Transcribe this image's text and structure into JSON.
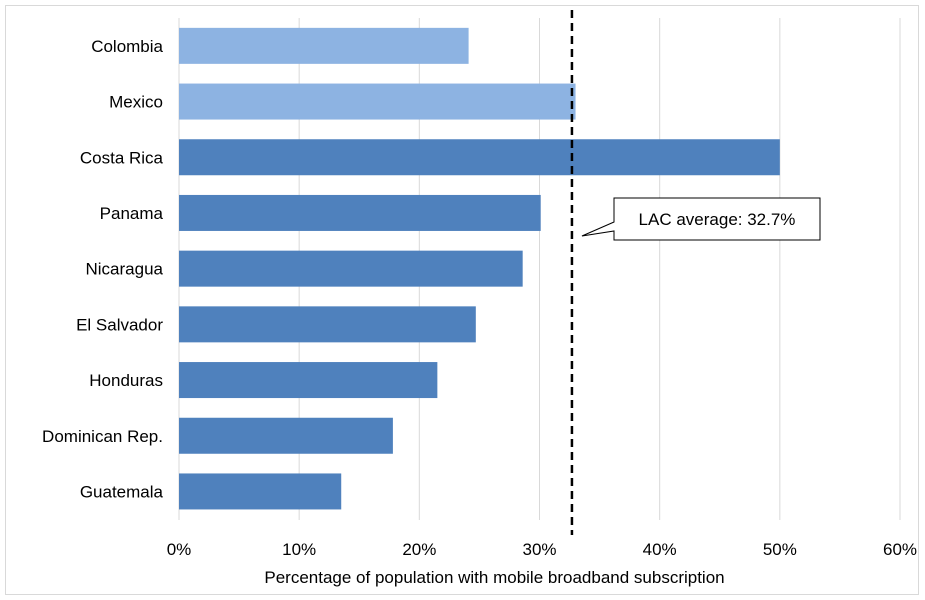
{
  "chart_data": {
    "type": "bar",
    "orientation": "horizontal",
    "categories": [
      "Colombia",
      "Mexico",
      "Costa Rica",
      "Panama",
      "Nicaragua",
      "El Salvador",
      "Honduras",
      "Dominican Rep.",
      "Guatemala"
    ],
    "values": [
      24.1,
      33.0,
      50.0,
      30.1,
      28.6,
      24.7,
      21.5,
      17.8,
      13.5
    ],
    "bar_colors": [
      "#8db3e2",
      "#8db3e2",
      "#4f81bd",
      "#4f81bd",
      "#4f81bd",
      "#4f81bd",
      "#4f81bd",
      "#4f81bd",
      "#4f81bd"
    ],
    "xlabel": "Percentage of population with mobile broadband subscription",
    "xlim": [
      0,
      60
    ],
    "xticks": [
      0,
      10,
      20,
      30,
      40,
      50,
      60
    ],
    "xtick_labels": [
      "0%",
      "10%",
      "20%",
      "30%",
      "40%",
      "50%",
      "60%"
    ],
    "grid": "vertical",
    "reference_line": {
      "value": 32.7,
      "style": "dashed",
      "label": "LAC average: 32.7%"
    }
  }
}
